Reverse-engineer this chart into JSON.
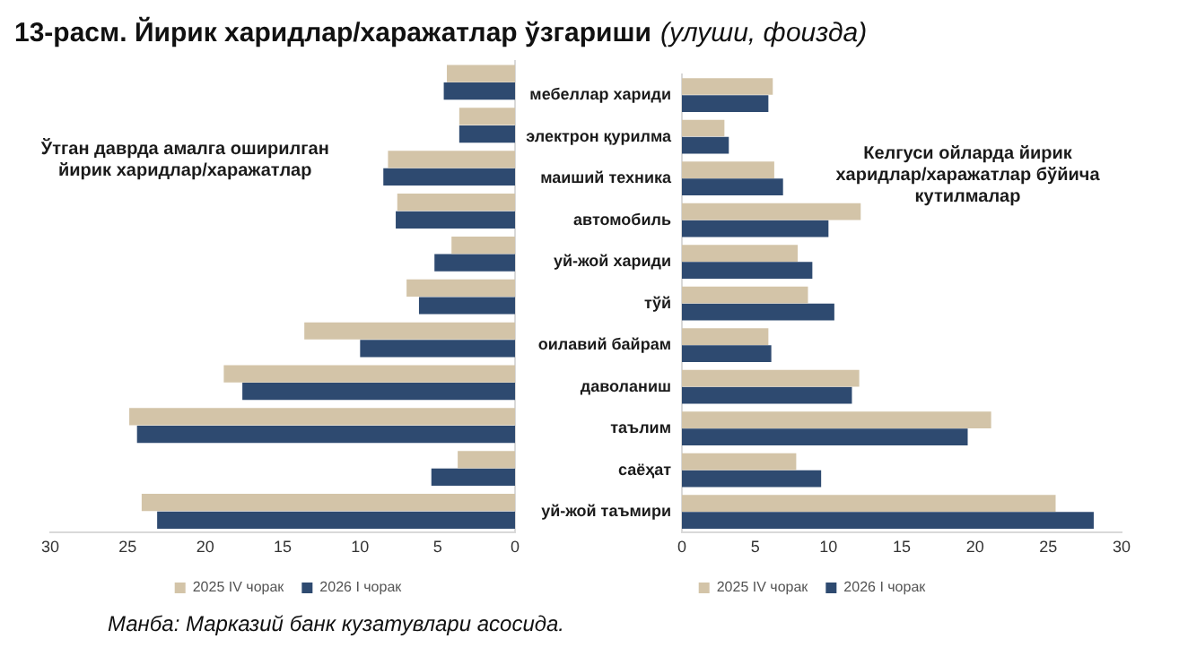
{
  "chart_data": [
    {
      "type": "bar",
      "orientation": "horizontal",
      "title": "13-расм. Йирик харидлар/харажатлар ўзгариши",
      "categories": [
        null,
        null,
        null,
        null,
        null,
        null,
        null,
        null,
        null,
        null,
        null
      ],
      "series": [
        {
          "name": "2025 IV чорак",
          "color": "#d3c4a8",
          "values": [
            4.4,
            3.6,
            8.2,
            7.6,
            4.1,
            7.0,
            13.6,
            18.8,
            24.9,
            3.7,
            24.1
          ]
        },
        {
          "name": "2026 I чорак",
          "color": "#2e4a70",
          "values": [
            4.6,
            3.6,
            8.5,
            7.7,
            5.2,
            6.2,
            10.0,
            17.6,
            24.4,
            5.4,
            23.1
          ]
        }
      ],
      "xlim": [
        30,
        0
      ],
      "xticks": [
        30,
        25,
        20,
        15,
        10,
        5,
        0
      ],
      "tick_labels": "x",
      "grid": false,
      "legend": "bottom",
      "annotations": [
        "Ўтган даврда амалга оширилган йирик харидлар/харажатлар",
        "Манба: Марказий банк кузатувлари асосида."
      ]
    },
    {
      "type": "bar",
      "orientation": "horizontal",
      "subtitle": "(улуши, фоизда)",
      "categories": [
        "мебеллар хариди",
        "электрон қурилма",
        "маиший техника",
        "автомобиль",
        "уй-жой хариди",
        "тўй",
        "оилавий байрам",
        "даволаниш",
        "таълим",
        "саёҳат",
        "уй-жой таъмири"
      ],
      "series": [
        {
          "name": "2025 IV чорак",
          "color": "#d3c4a8",
          "values": [
            6.2,
            2.9,
            6.3,
            12.2,
            7.9,
            8.6,
            5.9,
            12.1,
            21.1,
            7.8,
            25.5
          ]
        },
        {
          "name": "2026 I чорак",
          "color": "#2e4a70",
          "values": [
            5.9,
            3.2,
            6.9,
            10.0,
            8.9,
            10.4,
            6.1,
            11.6,
            19.5,
            9.5,
            28.1
          ]
        }
      ],
      "xlim": [
        0,
        30
      ],
      "xticks": [
        0,
        5,
        10,
        15,
        20,
        25,
        30
      ],
      "grid": false,
      "legend": "bottom",
      "annotations": [
        "Келгуси ойларда йирик харидлар/харажатлар бўйича кутилмалар"
      ]
    }
  ]
}
